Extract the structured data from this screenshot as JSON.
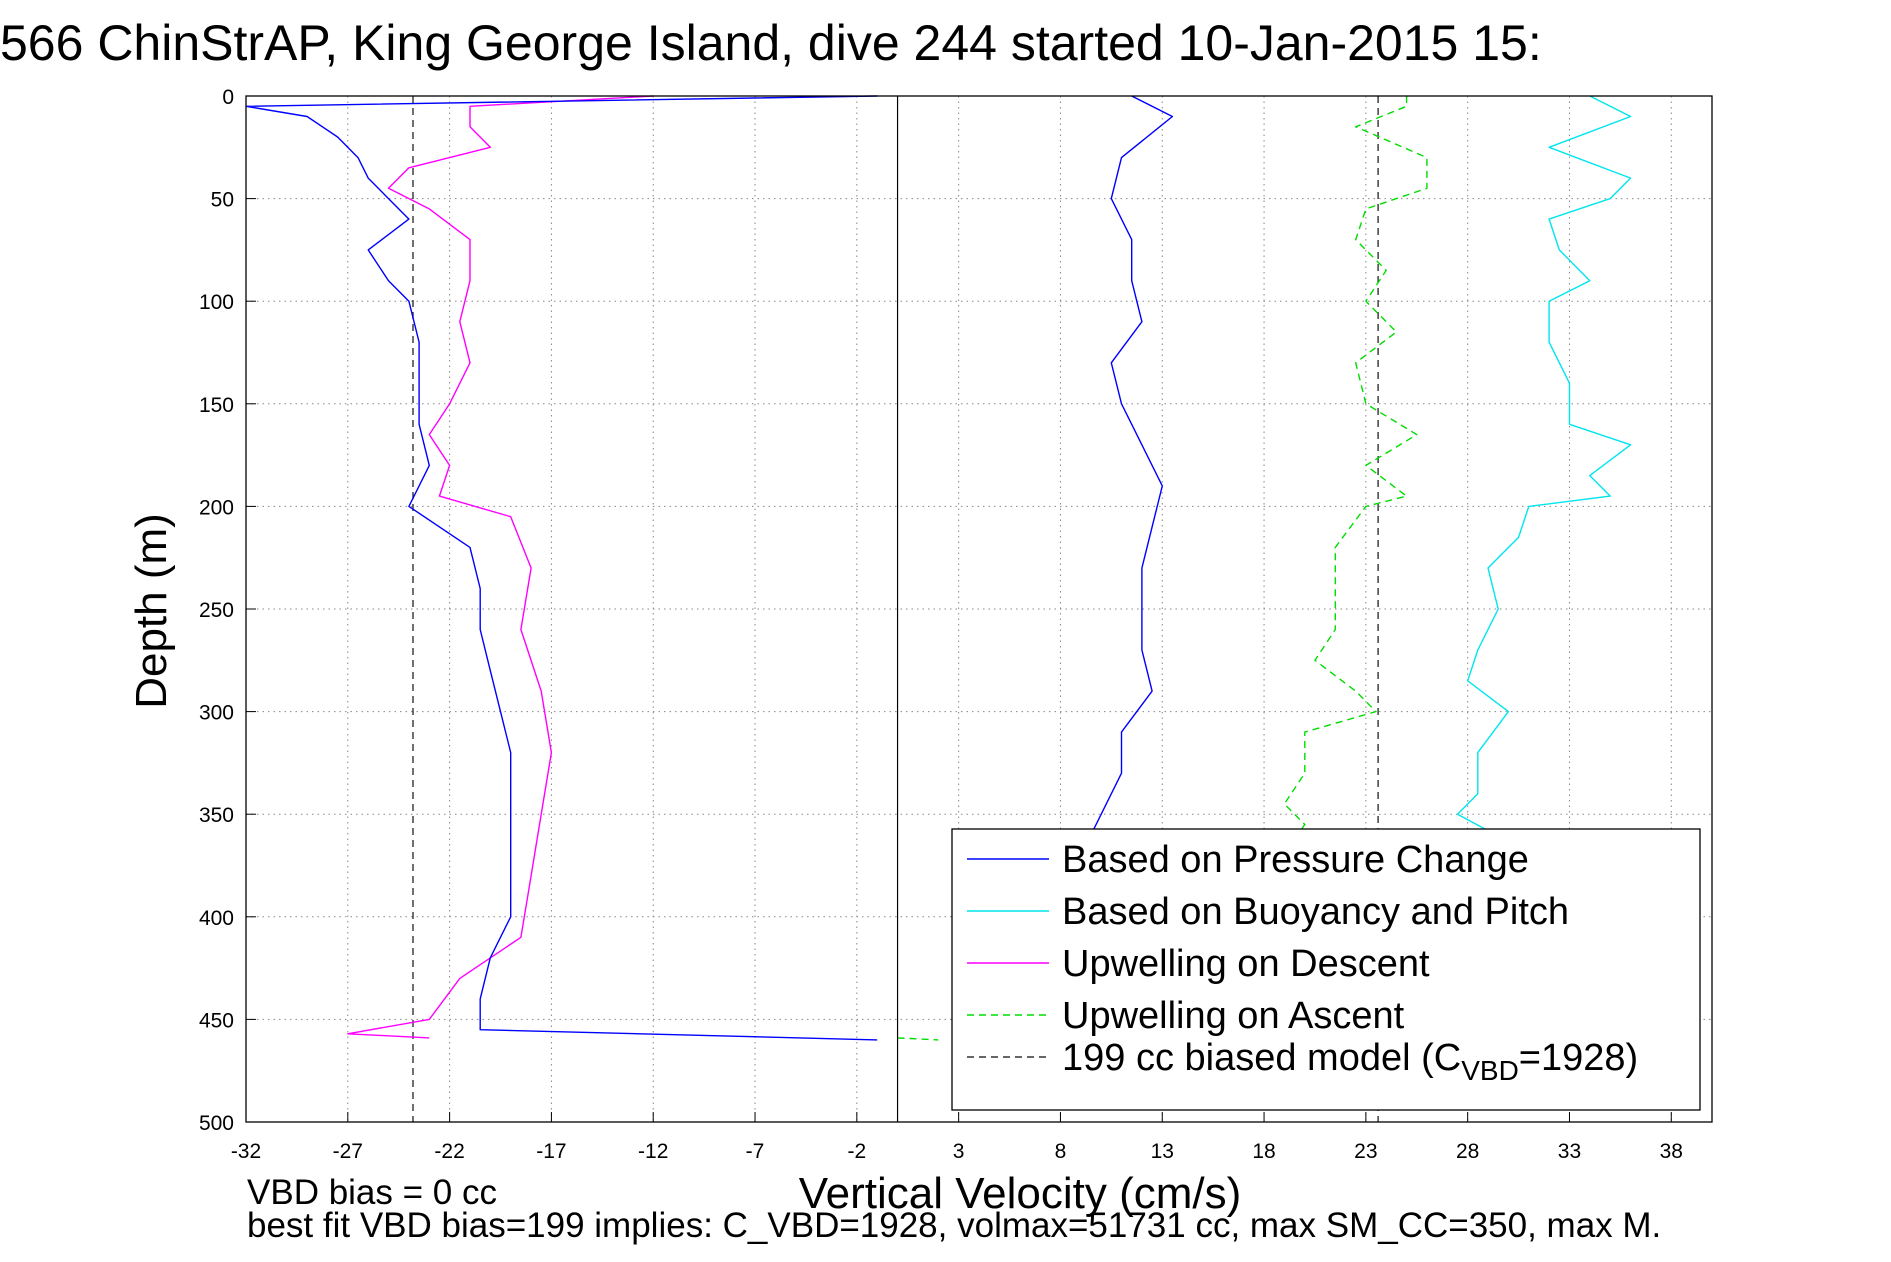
{
  "chart_data": {
    "type": "line",
    "title": "566 ChinStrAP, King George Island, dive 244 started 10-Jan-2015 15:",
    "xlabel": "Vertical Velocity (cm/s)",
    "ylabel": "Depth (m)",
    "xlim": [
      -32,
      40
    ],
    "ylim": [
      500,
      0
    ],
    "y_reversed": true,
    "grid": true,
    "xticks": [
      "-32",
      "-27",
      "-22",
      "-17",
      "-12",
      "-7",
      "-2",
      "3",
      "8",
      "13",
      "18",
      "23",
      "28",
      "33",
      "38"
    ],
    "yticks": [
      "0",
      "50",
      "100",
      "150",
      "200",
      "250",
      "300",
      "350",
      "400",
      "450",
      "500"
    ],
    "notes": [
      "VBD bias = 0 cc",
      "best fit VBD bias=199 implies: C_VBD=1928, volmax=51731 cc, max SM_CC=350, max M."
    ],
    "legend_position": "bottom-right",
    "legend": {
      "pressure": "Based on Pressure Change",
      "buoyancy": "Based on Buoyancy and Pitch",
      "descent": "Upwelling on Descent",
      "ascent": "Upwelling on Ascent",
      "model_prefix": "199 cc biased model (C",
      "model_sub": "VBD",
      "model_suffix": "=1928)"
    },
    "series": [
      {
        "key": "pressure",
        "name": "Based on Pressure Change",
        "color": "#0000ff",
        "style": "solid",
        "segments": [
          {
            "depth": [
              0,
              5,
              10,
              20,
              30,
              40,
              50,
              60,
              75,
              90,
              100,
              120,
              140,
              160,
              180,
              200,
              220,
              240,
              260,
              280,
              300,
              320,
              340,
              360,
              380,
              400,
              420,
              440,
              455,
              460
            ],
            "velocity": [
              -1,
              -32,
              -29,
              -27.5,
              -26.5,
              -26,
              -25,
              -24,
              -26,
              -25,
              -24,
              -23.5,
              -23.5,
              -23.5,
              -23,
              -24,
              -21,
              -20.5,
              -20.5,
              -20,
              -19.5,
              -19,
              -19,
              -19,
              -19,
              -19,
              -20,
              -20.5,
              -20.5,
              -1
            ]
          },
          {
            "depth": [
              0,
              10,
              30,
              50,
              70,
              90,
              110,
              130,
              150,
              170,
              190,
              210,
              230,
              250,
              270,
              290,
              310,
              330,
              350,
              360
            ],
            "velocity": [
              11.5,
              13.5,
              11,
              10.5,
              11.5,
              11.5,
              12,
              10.5,
              11,
              12,
              13,
              12.5,
              12,
              12,
              12,
              12.5,
              11,
              11,
              10,
              9.5
            ]
          }
        ]
      },
      {
        "key": "buoyancy",
        "name": "Based on Buoyancy and Pitch",
        "color": "#00e5ee",
        "style": "solid",
        "segments": [
          {
            "depth": [
              0,
              10,
              25,
              40,
              50,
              60,
              75,
              90,
              100,
              120,
              140,
              160,
              170,
              185,
              195,
              200,
              215,
              230,
              250,
              270,
              285,
              300,
              320,
              340,
              350,
              358
            ],
            "velocity": [
              34,
              36,
              32,
              36,
              35,
              32,
              32.5,
              34,
              32,
              32,
              33,
              33,
              36,
              34,
              35,
              31,
              30.5,
              29,
              29.5,
              28.5,
              28,
              30,
              28.5,
              28.5,
              27.5,
              29
            ]
          }
        ]
      },
      {
        "key": "descent",
        "name": "Upwelling on Descent",
        "color": "#ff00ff",
        "style": "solid",
        "segments": [
          {
            "depth": [
              0,
              5,
              15,
              25,
              35,
              45,
              55,
              70,
              90,
              110,
              130,
              150,
              165,
              180,
              195,
              205,
              230,
              260,
              290,
              320,
              350,
              380,
              410,
              430,
              450,
              457,
              459
            ],
            "velocity": [
              -12,
              -21,
              -21,
              -20,
              -24,
              -25,
              -23,
              -21,
              -21,
              -21.5,
              -21,
              -22,
              -23,
              -22,
              -22.5,
              -19,
              -18,
              -18.5,
              -17.5,
              -17,
              -17.5,
              -18,
              -18.5,
              -21.5,
              -23,
              -27,
              -23
            ]
          }
        ]
      },
      {
        "key": "ascent",
        "name": "Upwelling on Ascent",
        "color": "#00dd00",
        "style": "dashed",
        "segments": [
          {
            "depth": [
              0,
              5,
              15,
              30,
              45,
              55,
              70,
              85,
              100,
              115,
              130,
              150,
              165,
              180,
              195,
              200,
              220,
              240,
              260,
              275,
              290,
              300,
              310,
              330,
              345,
              355,
              362
            ],
            "velocity": [
              25,
              25,
              22.5,
              26,
              26,
              23,
              22.5,
              24,
              23,
              24.5,
              22.5,
              23,
              25.5,
              23,
              25,
              23,
              21.5,
              21.5,
              21.5,
              20.5,
              22.5,
              23.5,
              20,
              20,
              19,
              20,
              19.5
            ]
          },
          {
            "depth": [
              459,
              460
            ],
            "velocity": [
              0,
              2
            ]
          }
        ]
      },
      {
        "key": "model",
        "name": "199 cc biased model (CVBD=1928)",
        "color": "#333333",
        "style": "dashed",
        "segments": [
          {
            "depth": [
              0,
              500
            ],
            "velocity": [
              -23.8,
              -23.8
            ]
          },
          {
            "depth": [
              0,
              500
            ],
            "velocity": [
              23.6,
              23.6
            ]
          }
        ]
      }
    ]
  }
}
